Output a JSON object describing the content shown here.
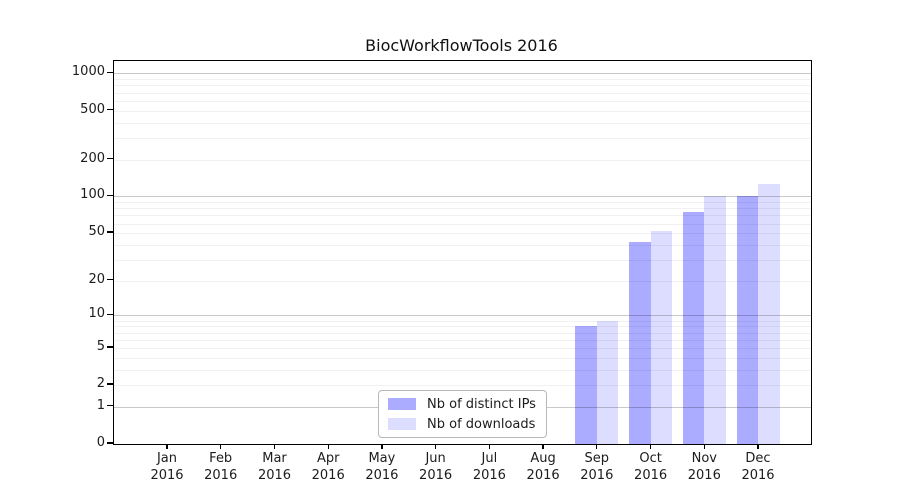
{
  "chart_data": {
    "type": "bar",
    "title": "BiocWorkflowTools 2016",
    "categories": [
      "Jan 2016",
      "Feb 2016",
      "Mar 2016",
      "Apr 2016",
      "May 2016",
      "Jun 2016",
      "Jul 2016",
      "Aug 2016",
      "Sep 2016",
      "Oct 2016",
      "Nov 2016",
      "Dec 2016"
    ],
    "series": [
      {
        "name": "Nb of distinct IPs",
        "color": "#ababff",
        "values": [
          0,
          0,
          0,
          0,
          0,
          0,
          0,
          0,
          8,
          42,
          75,
          100
        ]
      },
      {
        "name": "Nb of downloads",
        "color": "#ddddff",
        "values": [
          0,
          0,
          0,
          0,
          0,
          0,
          0,
          0,
          9,
          52,
          101,
          127
        ]
      }
    ],
    "xlabel": "",
    "ylabel": "",
    "yscale": "log1p",
    "ylim": [
      0,
      1260
    ],
    "yticks": [
      0,
      1,
      2,
      5,
      10,
      20,
      50,
      100,
      200,
      500,
      1000
    ],
    "major_gridlines": [
      1,
      10,
      100,
      1000
    ],
    "minor_gridlines": [
      2,
      3,
      4,
      5,
      6,
      7,
      8,
      9,
      20,
      30,
      40,
      50,
      60,
      70,
      80,
      90,
      200,
      300,
      400,
      500,
      600,
      700,
      800,
      900
    ],
    "grid": "on",
    "legend_position": "lower center inside"
  }
}
